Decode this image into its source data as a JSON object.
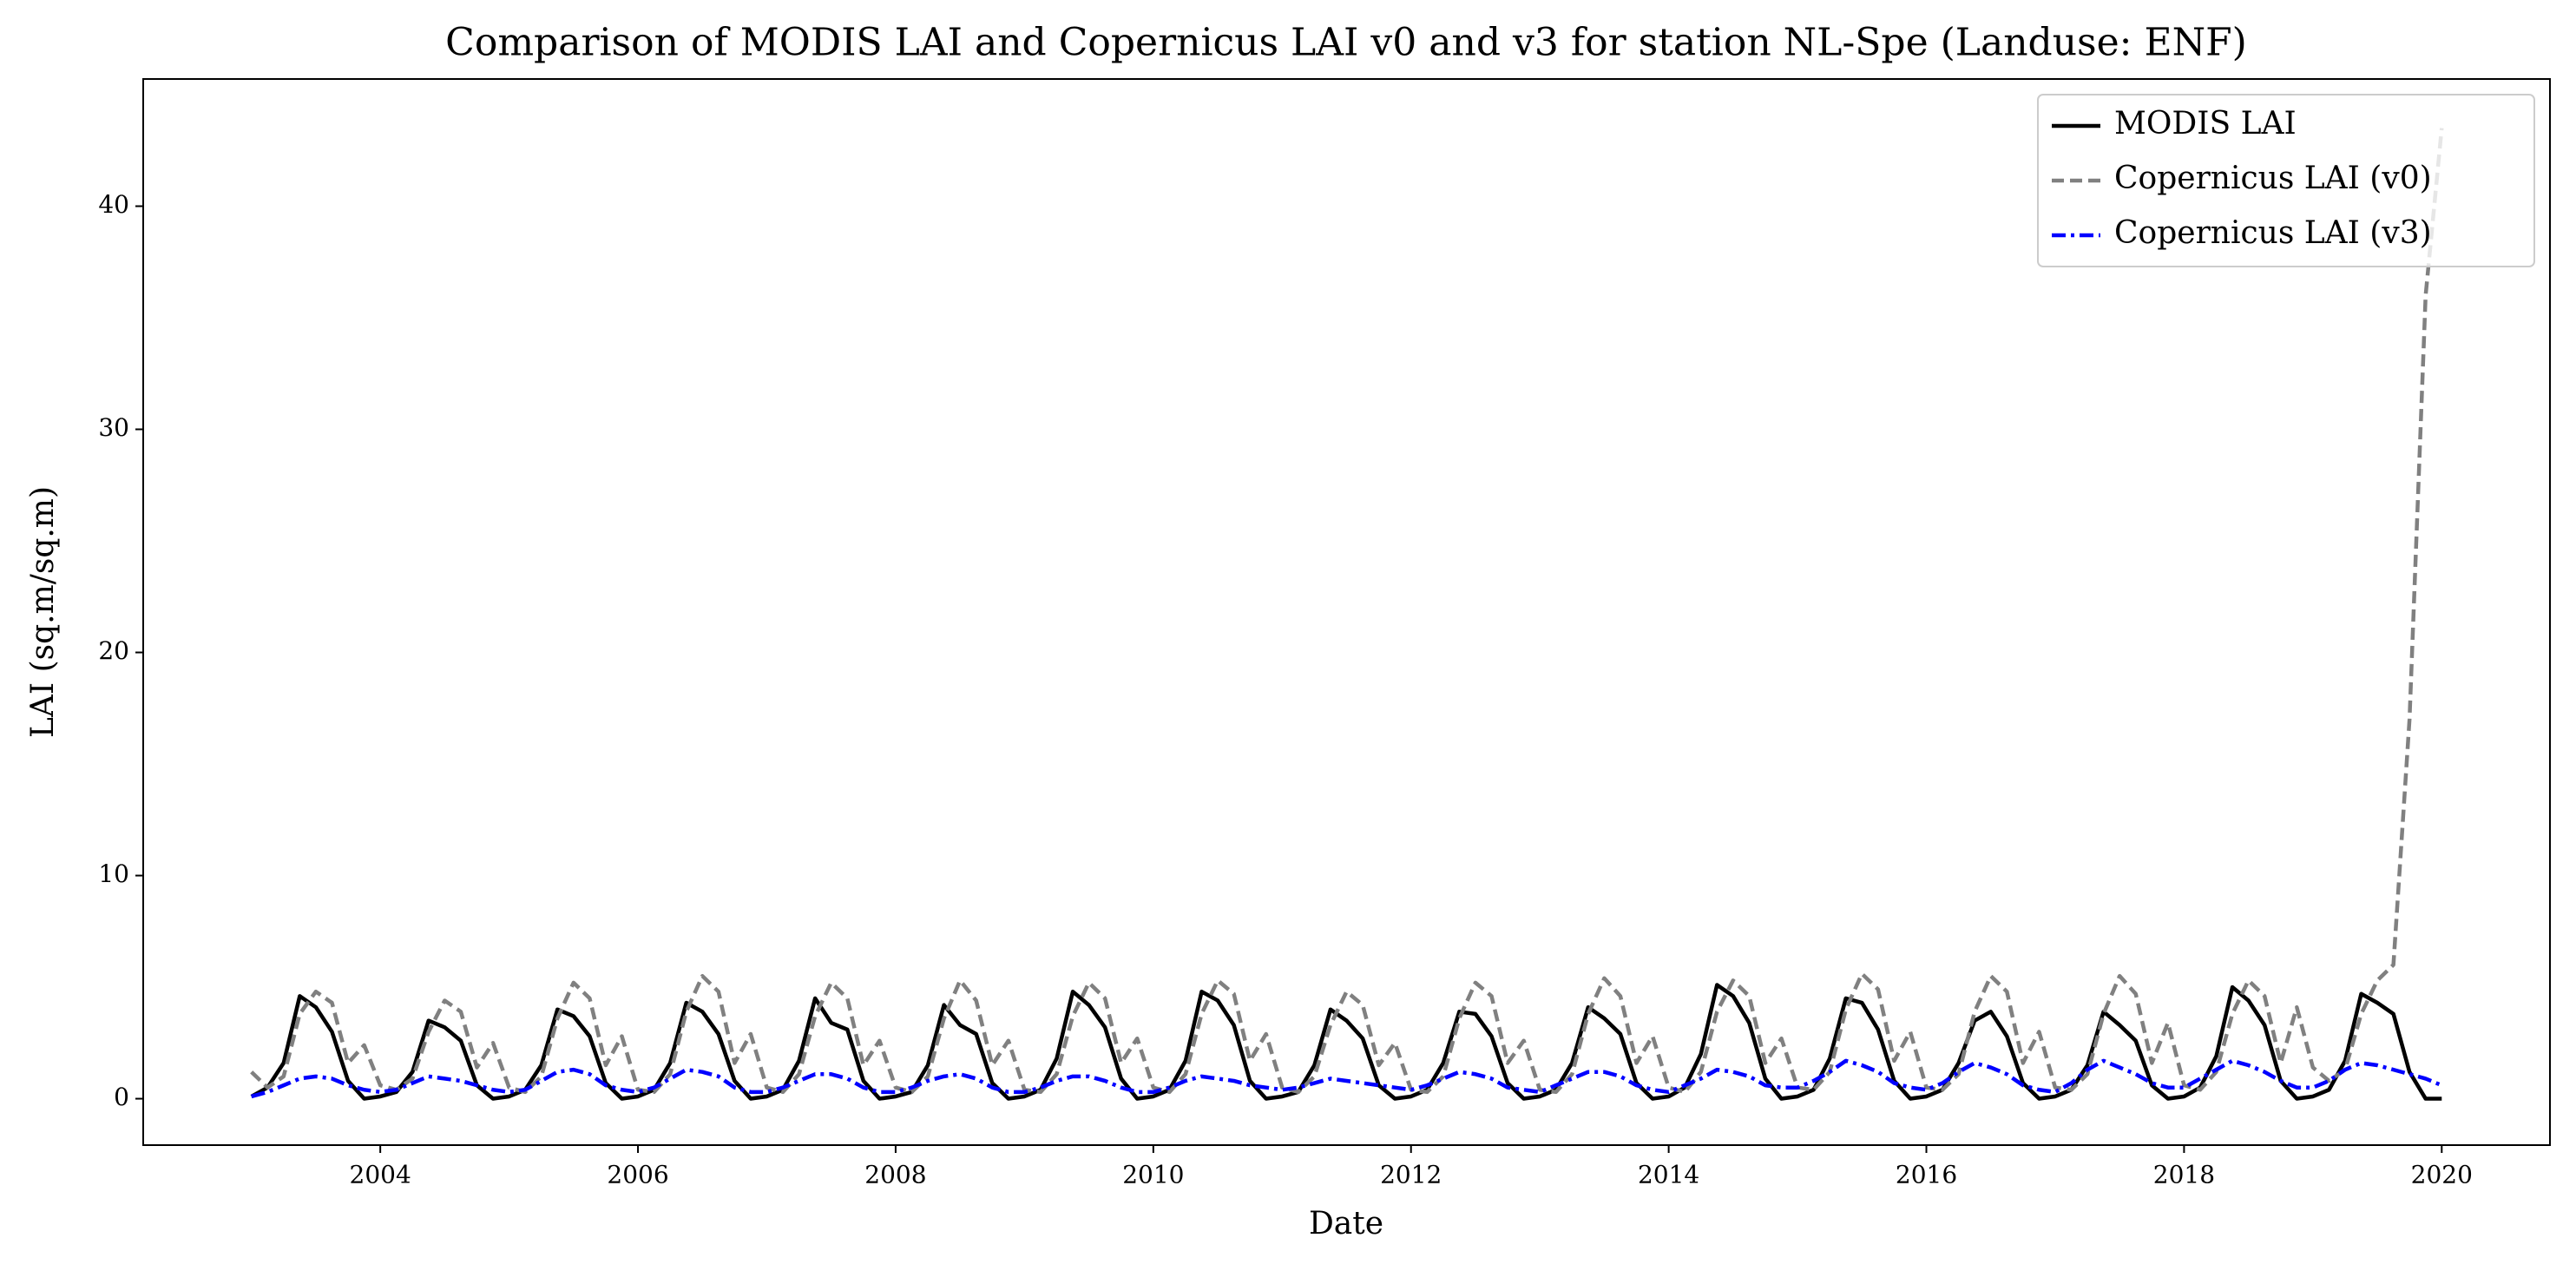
{
  "chart_data": {
    "type": "line",
    "title": "Comparison of MODIS LAI and Copernicus LAI v0 and v3 for station NL-Spe (Landuse: ENF)",
    "xlabel": "Date",
    "ylabel": "LAI (sq.m/sq.m)",
    "xlim": [
      2002.16,
      2020.84
    ],
    "ylim": [
      -2.08,
      45.7
    ],
    "xticks": [
      2004,
      2006,
      2008,
      2010,
      2012,
      2014,
      2016,
      2018,
      2020
    ],
    "yticks": [
      0,
      10,
      20,
      30,
      40
    ],
    "grid": false,
    "legend": "upper right",
    "x": [
      2003,
      2003.125,
      2003.25,
      2003.375,
      2003.5,
      2003.625,
      2003.75,
      2003.875,
      2004,
      2004.125,
      2004.25,
      2004.375,
      2004.5,
      2004.625,
      2004.75,
      2004.875,
      2005,
      2005.125,
      2005.25,
      2005.375,
      2005.5,
      2005.625,
      2005.75,
      2005.875,
      2006,
      2006.125,
      2006.25,
      2006.375,
      2006.5,
      2006.625,
      2006.75,
      2006.875,
      2007,
      2007.125,
      2007.25,
      2007.375,
      2007.5,
      2007.625,
      2007.75,
      2007.875,
      2008,
      2008.125,
      2008.25,
      2008.375,
      2008.5,
      2008.625,
      2008.75,
      2008.875,
      2009,
      2009.125,
      2009.25,
      2009.375,
      2009.5,
      2009.625,
      2009.75,
      2009.875,
      2010,
      2010.125,
      2010.25,
      2010.375,
      2010.5,
      2010.625,
      2010.75,
      2010.875,
      2011,
      2011.125,
      2011.25,
      2011.375,
      2011.5,
      2011.625,
      2011.75,
      2011.875,
      2012,
      2012.125,
      2012.25,
      2012.375,
      2012.5,
      2012.625,
      2012.75,
      2012.875,
      2013,
      2013.125,
      2013.25,
      2013.375,
      2013.5,
      2013.625,
      2013.75,
      2013.875,
      2014,
      2014.125,
      2014.25,
      2014.375,
      2014.5,
      2014.625,
      2014.75,
      2014.875,
      2015,
      2015.125,
      2015.25,
      2015.375,
      2015.5,
      2015.625,
      2015.75,
      2015.875,
      2016,
      2016.125,
      2016.25,
      2016.375,
      2016.5,
      2016.625,
      2016.75,
      2016.875,
      2017,
      2017.125,
      2017.25,
      2017.375,
      2017.5,
      2017.625,
      2017.75,
      2017.875,
      2018,
      2018.125,
      2018.25,
      2018.375,
      2018.5,
      2018.625,
      2018.75,
      2018.875,
      2019,
      2019.125,
      2019.25,
      2019.375,
      2019.5,
      2019.625,
      2019.75,
      2019.875,
      2020
    ],
    "series": [
      {
        "name": "MODIS LAI",
        "color": "#000000",
        "dash": "solid",
        "values": [
          0.1,
          0.5,
          1.6,
          4.6,
          4.1,
          3.0,
          0.8,
          0.0,
          0.1,
          0.3,
          1.2,
          3.5,
          3.2,
          2.6,
          0.6,
          0.0,
          0.1,
          0.4,
          1.5,
          4.0,
          3.7,
          2.8,
          0.7,
          0.0,
          0.1,
          0.4,
          1.6,
          4.3,
          3.9,
          2.9,
          0.8,
          0.0,
          0.1,
          0.4,
          1.7,
          4.5,
          3.4,
          3.1,
          0.8,
          0.0,
          0.1,
          0.3,
          1.5,
          4.2,
          3.3,
          2.9,
          0.7,
          0.0,
          0.1,
          0.4,
          1.8,
          4.8,
          4.2,
          3.2,
          0.9,
          0.0,
          0.1,
          0.4,
          1.7,
          4.8,
          4.4,
          3.3,
          0.8,
          0.0,
          0.1,
          0.3,
          1.5,
          4.0,
          3.5,
          2.7,
          0.6,
          0.0,
          0.1,
          0.4,
          1.6,
          3.9,
          3.8,
          2.8,
          0.7,
          0.0,
          0.1,
          0.4,
          1.6,
          4.1,
          3.6,
          2.9,
          0.7,
          0.0,
          0.1,
          0.5,
          2.0,
          5.1,
          4.6,
          3.4,
          0.9,
          0.0,
          0.1,
          0.4,
          1.8,
          4.5,
          4.3,
          3.1,
          0.8,
          0.0,
          0.1,
          0.4,
          1.6,
          3.5,
          3.9,
          2.8,
          0.7,
          0.0,
          0.1,
          0.4,
          1.5,
          3.9,
          3.3,
          2.6,
          0.6,
          0.0,
          0.1,
          0.5,
          1.9,
          5.0,
          4.4,
          3.3,
          0.8,
          0.0,
          0.1,
          0.4,
          1.7,
          4.7,
          4.3,
          3.8,
          1.2,
          0.0,
          0.0
        ]
      },
      {
        "name": "Copernicus LAI (v0)",
        "color": "#808080",
        "dash": "dashed",
        "values": [
          1.2,
          0.5,
          1.0,
          3.8,
          4.8,
          4.3,
          1.6,
          2.4,
          0.6,
          0.4,
          0.9,
          3.0,
          4.4,
          3.9,
          1.4,
          2.5,
          0.5,
          0.3,
          1.0,
          3.6,
          5.2,
          4.5,
          1.5,
          2.8,
          0.4,
          0.3,
          1.1,
          3.9,
          5.5,
          4.8,
          1.6,
          2.9,
          0.5,
          0.3,
          1.1,
          3.7,
          5.2,
          4.5,
          1.5,
          2.6,
          0.5,
          0.3,
          1.0,
          3.6,
          5.3,
          4.4,
          1.5,
          2.6,
          0.4,
          0.3,
          1.1,
          3.7,
          5.2,
          4.5,
          1.6,
          2.7,
          0.5,
          0.3,
          1.1,
          3.8,
          5.3,
          4.7,
          1.7,
          2.9,
          0.5,
          0.3,
          1.0,
          3.3,
          4.8,
          4.2,
          1.5,
          2.5,
          0.4,
          0.3,
          1.0,
          3.6,
          5.2,
          4.6,
          1.6,
          2.6,
          0.4,
          0.3,
          1.1,
          3.8,
          5.4,
          4.6,
          1.6,
          2.8,
          0.5,
          0.3,
          1.2,
          3.9,
          5.3,
          4.6,
          1.6,
          2.7,
          0.5,
          0.4,
          1.2,
          4.0,
          5.6,
          4.9,
          1.7,
          3.0,
          0.5,
          0.4,
          1.1,
          3.9,
          5.5,
          4.8,
          1.6,
          3.0,
          0.5,
          0.4,
          1.1,
          3.8,
          5.5,
          4.7,
          1.6,
          3.4,
          0.6,
          0.4,
          1.2,
          3.8,
          5.3,
          4.6,
          1.6,
          4.1,
          1.4,
          0.8,
          1.3,
          3.8,
          5.3,
          6.0,
          17.0,
          36.0,
          43.5
        ]
      },
      {
        "name": "Copernicus LAI (v3)",
        "color": "#0000ff",
        "dash": "dashdot",
        "values": [
          0.1,
          0.3,
          0.6,
          0.9,
          1.0,
          0.9,
          0.6,
          0.4,
          0.3,
          0.4,
          0.7,
          1.0,
          0.9,
          0.8,
          0.6,
          0.4,
          0.3,
          0.4,
          0.8,
          1.2,
          1.3,
          1.1,
          0.6,
          0.4,
          0.3,
          0.5,
          0.9,
          1.3,
          1.2,
          1.0,
          0.5,
          0.3,
          0.3,
          0.5,
          0.8,
          1.1,
          1.1,
          0.9,
          0.5,
          0.3,
          0.3,
          0.5,
          0.8,
          1.0,
          1.1,
          0.9,
          0.5,
          0.3,
          0.3,
          0.5,
          0.8,
          1.0,
          1.0,
          0.8,
          0.5,
          0.3,
          0.3,
          0.5,
          0.8,
          1.0,
          0.9,
          0.8,
          0.6,
          0.5,
          0.4,
          0.5,
          0.7,
          0.9,
          0.8,
          0.7,
          0.6,
          0.5,
          0.4,
          0.6,
          0.9,
          1.2,
          1.1,
          0.9,
          0.5,
          0.4,
          0.3,
          0.6,
          0.9,
          1.2,
          1.2,
          1.0,
          0.6,
          0.4,
          0.3,
          0.6,
          0.9,
          1.3,
          1.2,
          1.0,
          0.6,
          0.5,
          0.5,
          0.8,
          1.2,
          1.7,
          1.5,
          1.2,
          0.7,
          0.5,
          0.4,
          0.7,
          1.2,
          1.6,
          1.4,
          1.1,
          0.6,
          0.4,
          0.3,
          0.7,
          1.3,
          1.7,
          1.4,
          1.1,
          0.7,
          0.5,
          0.5,
          0.9,
          1.3,
          1.7,
          1.5,
          1.2,
          0.8,
          0.5,
          0.5,
          0.8,
          1.3,
          1.6,
          1.5,
          1.3,
          1.1,
          0.9,
          0.6
        ]
      }
    ]
  }
}
